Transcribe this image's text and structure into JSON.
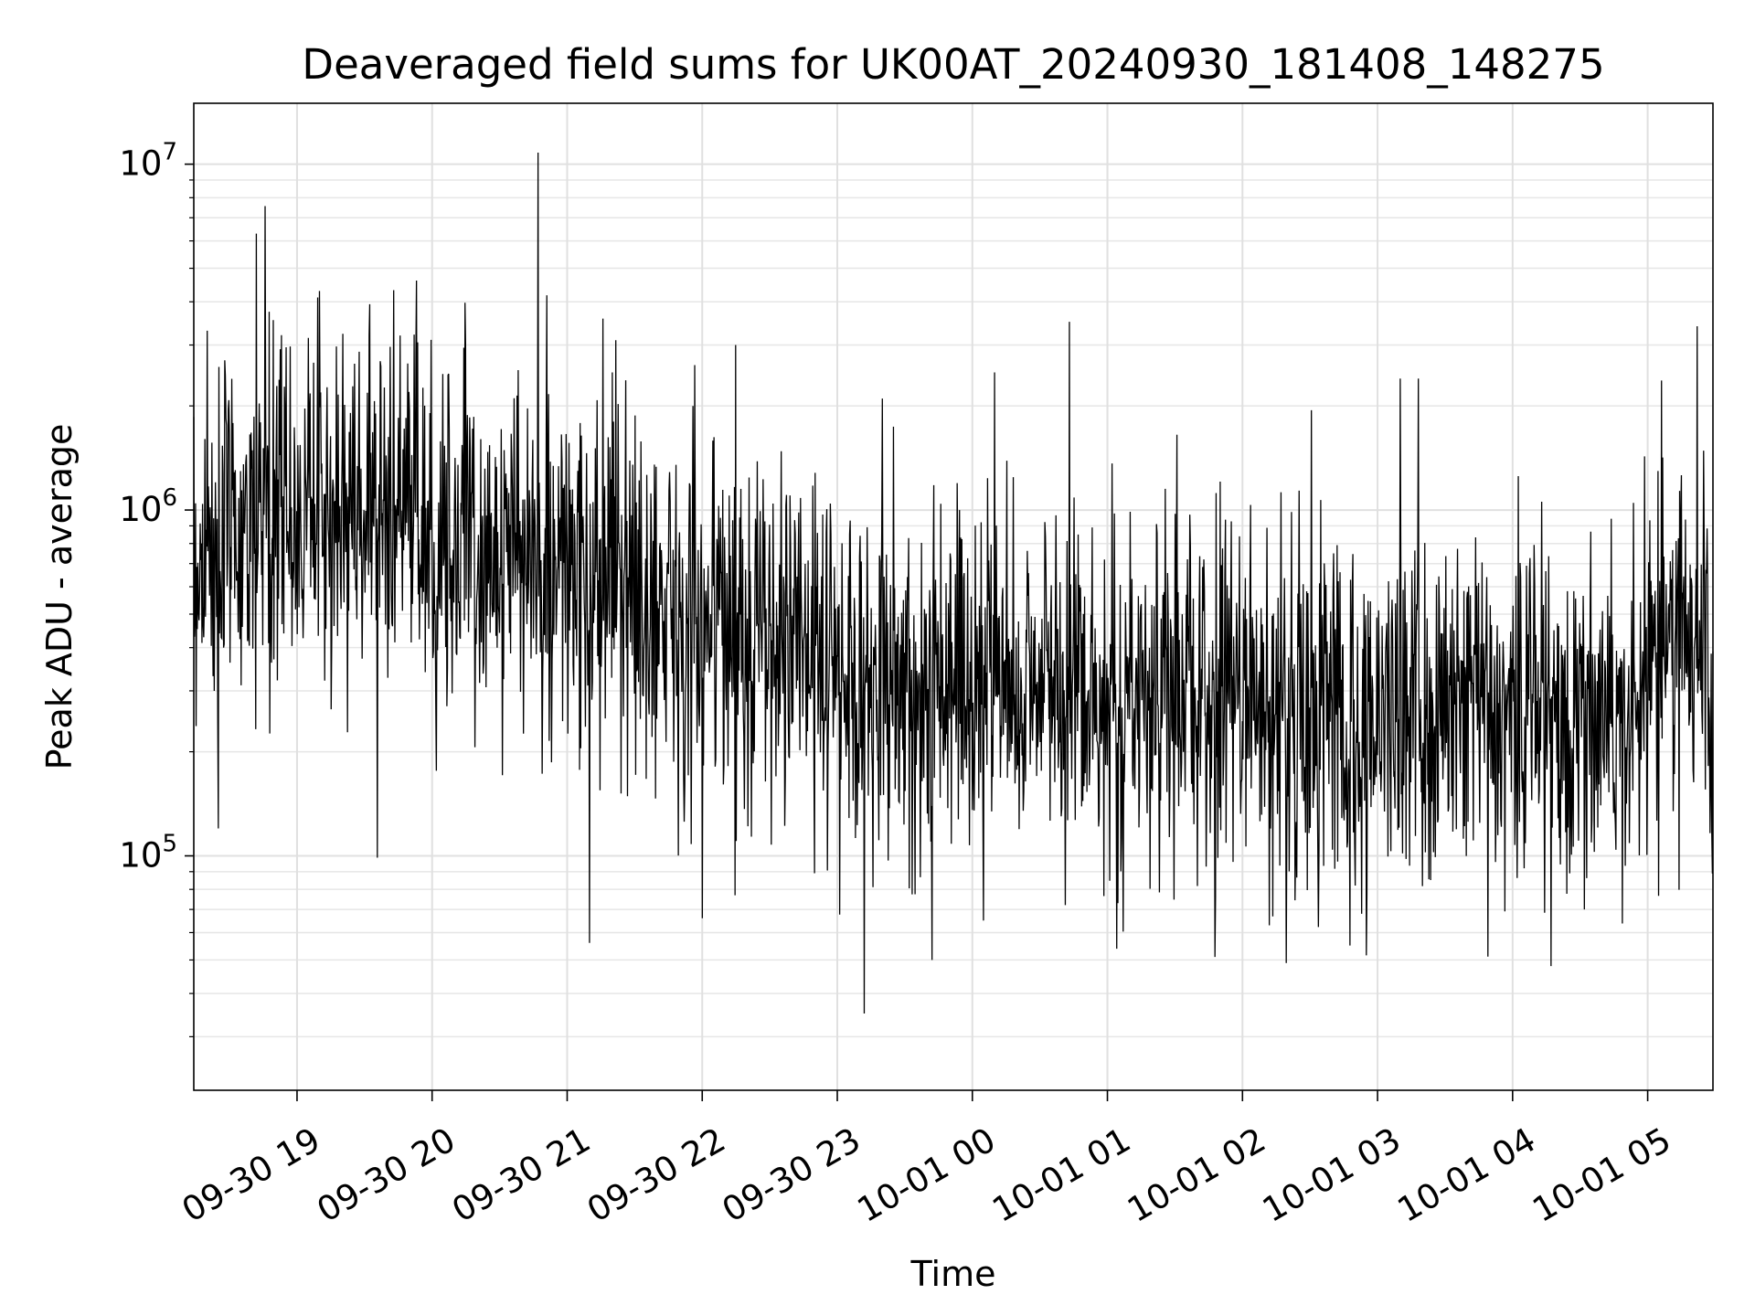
{
  "chart_data": {
    "type": "line",
    "title": "Deaveraged field sums for UK00AT_20240930_181408_148275",
    "xlabel": "Time",
    "ylabel": "Peak ADU - average",
    "y_scale": "log",
    "xlim": [
      "2024-09-30 18:14:08",
      "2024-10-01 05:29:00"
    ],
    "ylim": [
      21000,
      15000000
    ],
    "grid": "on (major and minor)",
    "line_color": "#000000",
    "x_ticks": [
      {
        "value": "2024-09-30 19:00",
        "label": "09-30 19"
      },
      {
        "value": "2024-09-30 20:00",
        "label": "09-30 20"
      },
      {
        "value": "2024-09-30 21:00",
        "label": "09-30 21"
      },
      {
        "value": "2024-09-30 22:00",
        "label": "09-30 22"
      },
      {
        "value": "2024-09-30 23:00",
        "label": "09-30 23"
      },
      {
        "value": "2024-10-01 00:00",
        "label": "10-01 00"
      },
      {
        "value": "2024-10-01 01:00",
        "label": "10-01 01"
      },
      {
        "value": "2024-10-01 02:00",
        "label": "10-01 02"
      },
      {
        "value": "2024-10-01 03:00",
        "label": "10-01 03"
      },
      {
        "value": "2024-10-01 04:00",
        "label": "10-01 04"
      },
      {
        "value": "2024-10-01 05:00",
        "label": "10-01 05"
      }
    ],
    "y_ticks": [
      {
        "value": 100000,
        "base": "10",
        "exp": "5"
      },
      {
        "value": 1000000,
        "base": "10",
        "exp": "6"
      },
      {
        "value": 10000000,
        "base": "10",
        "exp": "7"
      }
    ],
    "series": [
      {
        "x": [
          "2024-09-30 18:15",
          "2024-09-30 18:30",
          "2024-09-30 18:45",
          "2024-09-30 19:00",
          "2024-09-30 19:15",
          "2024-09-30 19:30",
          "2024-09-30 19:45",
          "2024-09-30 20:00",
          "2024-09-30 20:15",
          "2024-09-30 20:30",
          "2024-09-30 20:45",
          "2024-09-30 21:00",
          "2024-09-30 21:15",
          "2024-09-30 21:30",
          "2024-09-30 21:45",
          "2024-09-30 22:00",
          "2024-09-30 22:15",
          "2024-09-30 22:30",
          "2024-09-30 22:45",
          "2024-09-30 23:00",
          "2024-09-30 23:15",
          "2024-09-30 23:30",
          "2024-09-30 23:45",
          "2024-10-01 00:00",
          "2024-10-01 00:15",
          "2024-10-01 00:30",
          "2024-10-01 00:45",
          "2024-10-01 01:00",
          "2024-10-01 01:15",
          "2024-10-01 01:30",
          "2024-10-01 01:45",
          "2024-10-01 02:00",
          "2024-10-01 02:15",
          "2024-10-01 02:30",
          "2024-10-01 02:45",
          "2024-10-01 03:00",
          "2024-10-01 03:15",
          "2024-10-01 03:30",
          "2024-10-01 03:45",
          "2024-10-01 04:00",
          "2024-10-01 04:15",
          "2024-10-01 04:30",
          "2024-10-01 04:45",
          "2024-10-01 05:00",
          "2024-10-01 05:15",
          "2024-10-01 05:28"
        ],
        "y": [
          700000,
          850000,
          900000,
          1000000,
          1000000,
          1050000,
          1000000,
          900000,
          800000,
          750000,
          700000,
          650000,
          600000,
          550000,
          550000,
          500000,
          450000,
          420000,
          400000,
          350000,
          330000,
          320000,
          320000,
          320000,
          330000,
          320000,
          300000,
          300000,
          300000,
          290000,
          290000,
          280000,
          270000,
          260000,
          260000,
          250000,
          260000,
          270000,
          270000,
          300000,
          280000,
          260000,
          260000,
          350000,
          500000,
          300000
        ],
        "peaks": [
          {
            "x": "2024-09-30 18:20",
            "y": 3300000
          },
          {
            "x": "2024-09-30 18:42",
            "y": 6300000
          },
          {
            "x": "2024-09-30 19:10",
            "y": 4300000
          },
          {
            "x": "2024-09-30 19:32",
            "y": 3200000
          },
          {
            "x": "2024-09-30 20:15",
            "y": 3000000
          },
          {
            "x": "2024-09-30 20:47",
            "y": 10800000
          },
          {
            "x": "2024-09-30 21:20",
            "y": 2500000
          },
          {
            "x": "2024-09-30 23:20",
            "y": 2100000
          },
          {
            "x": "2024-10-01 00:10",
            "y": 2500000
          },
          {
            "x": "2024-10-01 00:43",
            "y": 3500000
          },
          {
            "x": "2024-10-01 03:10",
            "y": 2400000
          },
          {
            "x": "2024-10-01 03:18",
            "y": 2400000
          },
          {
            "x": "2024-10-01 05:22",
            "y": 3400000
          }
        ],
        "troughs": [
          {
            "x": "2024-09-30 18:25",
            "y": 120000
          },
          {
            "x": "2024-09-30 21:10",
            "y": 56000
          },
          {
            "x": "2024-09-30 22:00",
            "y": 66000
          },
          {
            "x": "2024-09-30 23:12",
            "y": 35000
          },
          {
            "x": "2024-09-30 23:42",
            "y": 50000
          },
          {
            "x": "2024-10-01 00:05",
            "y": 65000
          },
          {
            "x": "2024-10-01 02:12",
            "y": 63000
          },
          {
            "x": "2024-10-01 02:53",
            "y": 68000
          },
          {
            "x": "2024-10-01 04:17",
            "y": 48000
          },
          {
            "x": "2024-10-01 04:32",
            "y": 70000
          }
        ]
      }
    ]
  }
}
